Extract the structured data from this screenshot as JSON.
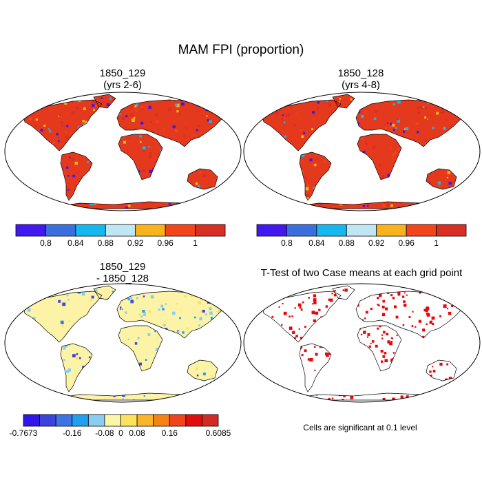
{
  "main_title": "MAM FPI (proportion)",
  "panels": {
    "top_left": {
      "title_line1": "1850_129",
      "title_line2": "(yrs 2-6)"
    },
    "top_right": {
      "title_line1": "1850_128",
      "title_line2": "(yrs 4-8)"
    },
    "bottom_left": {
      "title_line1": "1850_129",
      "title_line2": "- 1850_128"
    },
    "bottom_right": {
      "title_line1": "T-Test of two Case means at each grid point"
    }
  },
  "colorbar_fpi": {
    "colors": [
      "#4218f0",
      "#3a6fe0",
      "#14b8ee",
      "#bfe6f4",
      "#f9b21a",
      "#f4441a",
      "#d92e22"
    ],
    "labels": [
      "0.8",
      "0.84",
      "0.88",
      "0.92",
      "0.96",
      "1"
    ]
  },
  "colorbar_diff": {
    "colors": [
      "#3016e8",
      "#3d44dc",
      "#3b76e4",
      "#1fa0f0",
      "#8acdf2",
      "#fdf6a5",
      "#fde25a",
      "#fbb52a",
      "#f78214",
      "#f2441c",
      "#e20c0c",
      "#d32a24"
    ],
    "labels": [
      "-0.7673",
      "-0.16",
      "-0.08",
      "0",
      "0.08",
      "0.16",
      "0.6085"
    ]
  },
  "significance_note": "Cells are significant at 0.1 level",
  "colors": {
    "ocean": "#ffffff",
    "land_fpi": "#e5391e",
    "land_diff": "#fcf3a6",
    "sig": "#e8080c",
    "coast": "#000000"
  }
}
